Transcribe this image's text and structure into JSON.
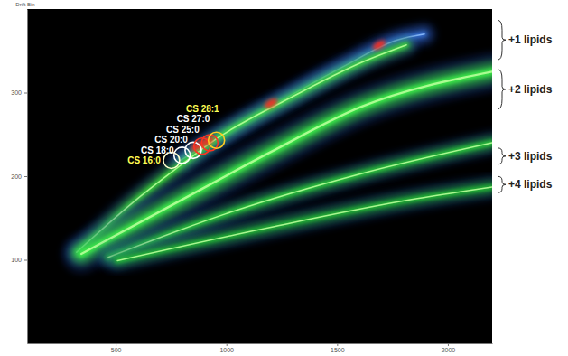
{
  "chart_data": {
    "type": "density",
    "y_label": "Drift Bin",
    "xlim": [
      100,
      2200
    ],
    "ylim": [
      0,
      400
    ],
    "xticks": [
      500,
      1000,
      1500,
      2000
    ],
    "yticks": [
      100,
      200,
      300
    ],
    "series": [
      {
        "color": "#3a78e0",
        "x": [
          793,
          1201,
          1527,
          1772,
          1894
        ],
        "y": [
          219,
          283,
          331,
          363,
          370
        ]
      },
      {
        "color": "#3fe03a",
        "x": [
          324,
          589,
          793,
          956,
          1283,
          1609,
          1813
        ],
        "y": [
          109,
          171,
          213,
          245,
          293,
          336,
          357
        ]
      },
      {
        "color": "#3ef04a",
        "x": [
          345,
          793,
          1201,
          1609,
          2200
        ],
        "y": [
          107,
          171,
          229,
          283,
          325
        ]
      },
      {
        "color": "#2fd63c",
        "x": [
          467,
          997,
          1609,
          2200
        ],
        "y": [
          103,
          155,
          203,
          240
        ]
      },
      {
        "color": "#27c436",
        "x": [
          508,
          1201,
          1813,
          2200
        ],
        "y": [
          99,
          139,
          171,
          187
        ]
      }
    ],
    "hotspots": [
      {
        "x": 1690,
        "y": 357,
        "color": "#ff2a1a"
      },
      {
        "x": 1201,
        "y": 287,
        "color": "#ff2a1a"
      },
      {
        "x": 915,
        "y": 242,
        "color": "#ff2a1a"
      },
      {
        "x": 870,
        "y": 236,
        "color": "#ff2a1a"
      }
    ],
    "annotations": [
      {
        "text": "CS 16:0",
        "x": 752,
        "y": 219,
        "color": "#ffff55",
        "marker_color": "#ffffcc"
      },
      {
        "text": "CS 18:0",
        "x": 800,
        "y": 225,
        "color": "#ffffff",
        "marker_color": "#ffffff"
      },
      {
        "text": "CS 20:0",
        "x": 850,
        "y": 231,
        "color": "#ffffff",
        "marker_color": "#ffffff"
      },
      {
        "text": "CS 25:0",
        "x": 890,
        "y": 236,
        "color": "#ffffff",
        "marker_color": "#ff3322"
      },
      {
        "text": "CS 27:0",
        "x": 925,
        "y": 240,
        "color": "#ffffff",
        "marker_color": "#ff3322"
      },
      {
        "text": "CS 28:1",
        "x": 955,
        "y": 243,
        "color": "#ffff55",
        "marker_color": "#ffcc22"
      }
    ],
    "band_labels": [
      {
        "text": "+1 lipids",
        "y": 363
      },
      {
        "text": "+2 lipids",
        "y": 304
      },
      {
        "text": "+3 lipids",
        "y": 224
      },
      {
        "text": "+4 lipids",
        "y": 190
      }
    ]
  }
}
